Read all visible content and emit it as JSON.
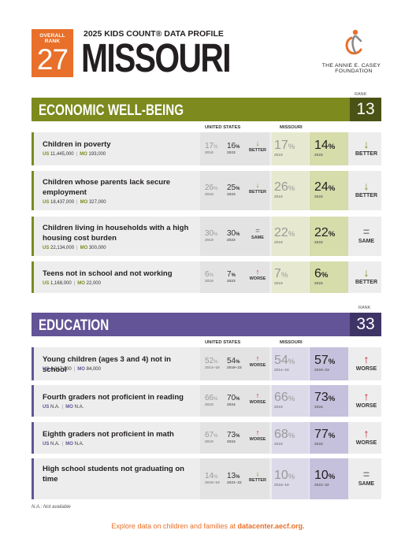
{
  "header": {
    "rank_label": "OVERALL RANK",
    "rank": "27",
    "profile_title": "2025 KIDS COUNT® DATA PROFILE",
    "state": "MISSOURI",
    "org_line1": "THE ANNIE E. CASEY",
    "org_line2": "FOUNDATION"
  },
  "econ": {
    "rank_label": "RANK",
    "title": "ECONOMIC WELL-BEING",
    "rank": "13",
    "col_us": "UNITED STATES",
    "col_mo": "MISSOURI",
    "rows": [
      {
        "label": "Children in poverty",
        "us_count_lbl": "US",
        "us_count": "11,445,000",
        "mo_count_lbl": "MO",
        "mo_count": "193,000",
        "us_old": "17",
        "us_old_year": "2019",
        "us_new": "16",
        "us_new_year": "2023",
        "us_trend": "BETTER",
        "mo_old": "17",
        "mo_old_year": "2019",
        "mo_new": "14",
        "mo_new_year": "2023",
        "mo_trend": "BETTER"
      },
      {
        "label": "Children whose parents lack secure employment",
        "us_count_lbl": "US",
        "us_count": "18,437,000",
        "mo_count_lbl": "MO",
        "mo_count": "327,000",
        "us_old": "26",
        "us_old_year": "2019",
        "us_new": "25",
        "us_new_year": "2023",
        "us_trend": "BETTER",
        "mo_old": "26",
        "mo_old_year": "2019",
        "mo_new": "24",
        "mo_new_year": "2023",
        "mo_trend": "BETTER"
      },
      {
        "label": "Children living in households with a high housing cost burden",
        "us_count_lbl": "US",
        "us_count": "22,134,000",
        "mo_count_lbl": "MO",
        "mo_count": "300,000",
        "us_old": "30",
        "us_old_year": "2019",
        "us_new": "30",
        "us_new_year": "2023",
        "us_trend": "SAME",
        "mo_old": "22",
        "mo_old_year": "2019",
        "mo_new": "22",
        "mo_new_year": "2023",
        "mo_trend": "SAME"
      },
      {
        "label": "Teens not in school and not working",
        "us_count_lbl": "US",
        "us_count": "1,168,000",
        "mo_count_lbl": "MO",
        "mo_count": "22,000",
        "us_old": "6",
        "us_old_year": "2019",
        "us_new": "7",
        "us_new_year": "2023",
        "us_trend": "WORSE",
        "mo_old": "7",
        "mo_old_year": "2019",
        "mo_new": "6",
        "mo_new_year": "2023",
        "mo_trend": "BETTER"
      }
    ]
  },
  "edu": {
    "rank_label": "RANK",
    "title": "EDUCATION",
    "rank": "33",
    "col_us": "UNITED STATES",
    "col_mo": "MISSOURI",
    "rows": [
      {
        "label": "Young children (ages 3 and 4) not in school",
        "us_count_lbl": "US",
        "us_count": "4,317,000",
        "mo_count_lbl": "MO",
        "mo_count": "84,000",
        "us_old": "52",
        "us_old_year": "2014–18",
        "us_new": "54",
        "us_new_year": "2019–23",
        "us_trend": "WORSE",
        "mo_old": "54",
        "mo_old_year": "2014–18",
        "mo_new": "57",
        "mo_new_year": "2019–23",
        "mo_trend": "WORSE"
      },
      {
        "label": "Fourth graders not proficient in reading",
        "us_count_lbl": "US",
        "us_count": "N.A.",
        "mo_count_lbl": "MO",
        "mo_count": "N.A.",
        "us_old": "66",
        "us_old_year": "2019",
        "us_new": "70",
        "us_new_year": "2024",
        "us_trend": "WORSE",
        "mo_old": "66",
        "mo_old_year": "2019",
        "mo_new": "73",
        "mo_new_year": "2024",
        "mo_trend": "WORSE"
      },
      {
        "label": "Eighth graders not proficient in math",
        "us_count_lbl": "US",
        "us_count": "N.A.",
        "mo_count_lbl": "MO",
        "mo_count": "N.A.",
        "us_old": "67",
        "us_old_year": "2019",
        "us_new": "73",
        "us_new_year": "2024",
        "us_trend": "WORSE",
        "mo_old": "68",
        "mo_old_year": "2019",
        "mo_new": "77",
        "mo_new_year": "2024",
        "mo_trend": "WORSE"
      },
      {
        "label": "High school students not graduating on time",
        "us_count_lbl": "",
        "us_count": "",
        "mo_count_lbl": "",
        "mo_count": "",
        "us_old": "14",
        "us_old_year": "2018–19",
        "us_new": "13",
        "us_new_year": "2021–22",
        "us_trend": "BETTER",
        "mo_old": "10",
        "mo_old_year": "2018–19",
        "mo_new": "10",
        "mo_new_year": "2021–22",
        "mo_trend": "SAME"
      }
    ]
  },
  "note": "N.A.: Not available",
  "footer_text": "Explore data on children and families at ",
  "footer_link": "datacenter.aecf.org.",
  "colors": {
    "orange": "#e8702a",
    "econ": "#7c8a1e",
    "edu": "#625496",
    "better": "#7c8a1e",
    "worse": "#c4172c"
  }
}
